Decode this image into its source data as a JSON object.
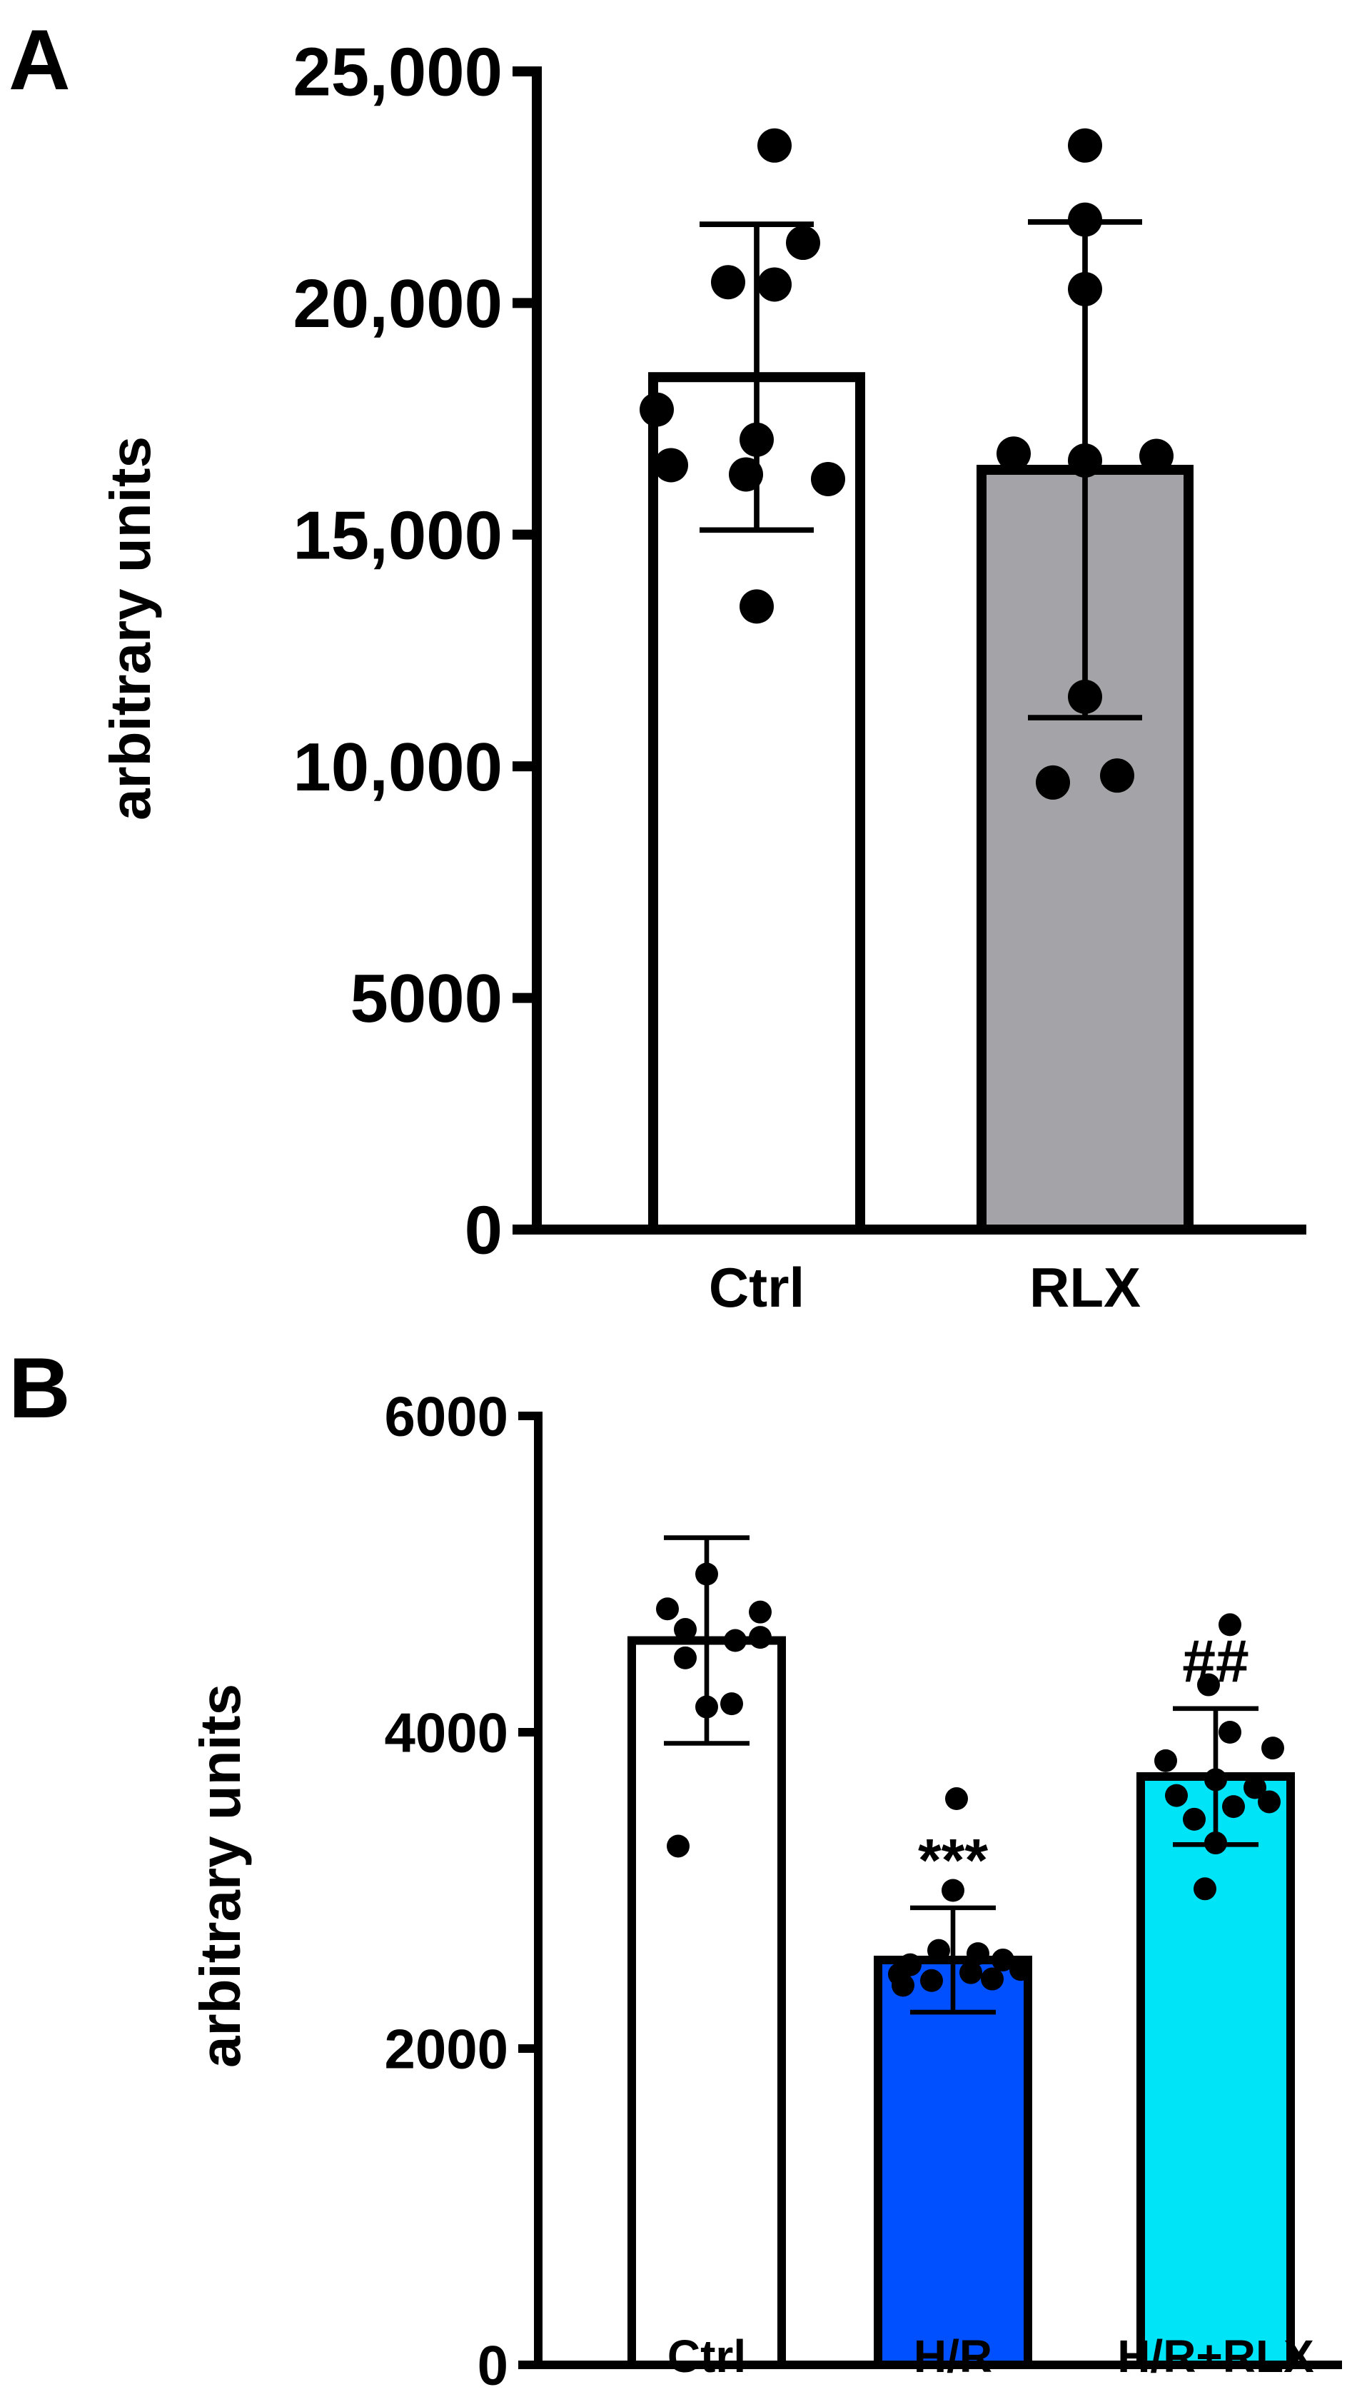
{
  "figure": {
    "panels": [
      {
        "letter": "A"
      },
      {
        "letter": "B"
      }
    ]
  },
  "chart_data": [
    {
      "panel": "A",
      "type": "bar",
      "ylabel": "arbitrary units",
      "ylim": [
        0,
        25000
      ],
      "yticks": [
        0,
        5000,
        10000,
        15000,
        20000,
        25000
      ],
      "ytick_labels": [
        "0",
        "5000",
        "10,000",
        "15,000",
        "20,000",
        "25,000"
      ],
      "categories": [
        "Ctrl",
        "RLX"
      ],
      "series": [
        {
          "values": [
            18400,
            16400
          ],
          "errors": [
            3300,
            5350
          ],
          "colors": [
            "#ffffff",
            "#a4a4a8"
          ],
          "points": [
            [
              23400,
              21300,
              20450,
              20400,
              17700,
              17050,
              16500,
              16200,
              16300,
              13450
            ],
            [
              23400,
              21800,
              20300,
              16750,
              16600,
              16700,
              11500,
              9650,
              9800
            ]
          ]
        }
      ],
      "annotations": [
        "",
        ""
      ],
      "grid": false
    },
    {
      "panel": "B",
      "type": "bar",
      "ylabel": "arbitrary units",
      "ylim": [
        0,
        6000
      ],
      "yticks": [
        0,
        2000,
        4000,
        6000
      ],
      "ytick_labels": [
        "0",
        "2000",
        "4000",
        "6000"
      ],
      "categories": [
        "Ctrl",
        "H/R",
        "H/R+RLX"
      ],
      "series": [
        {
          "values": [
            4580,
            2560,
            3720
          ],
          "errors": [
            650,
            330,
            430
          ],
          "colors": [
            "#ffffff",
            "#0050ff",
            "#00e4f8"
          ],
          "points": [
            [
              5000,
              4780,
              4760,
              4650,
              4600,
              4580,
              4470,
              4180,
              4160,
              3280
            ],
            [
              3580,
              3000,
              2620,
              2600,
              2560,
              2530,
              2500,
              2480,
              2470,
              2440,
              2430,
              2400
            ],
            [
              4680,
              4300,
              4000,
              3900,
              3820,
              3700,
              3650,
              3600,
              3560,
              3530,
              3450,
              3300,
              3010
            ]
          ]
        }
      ],
      "annotations": [
        "",
        "***",
        "##"
      ],
      "grid": false
    }
  ]
}
